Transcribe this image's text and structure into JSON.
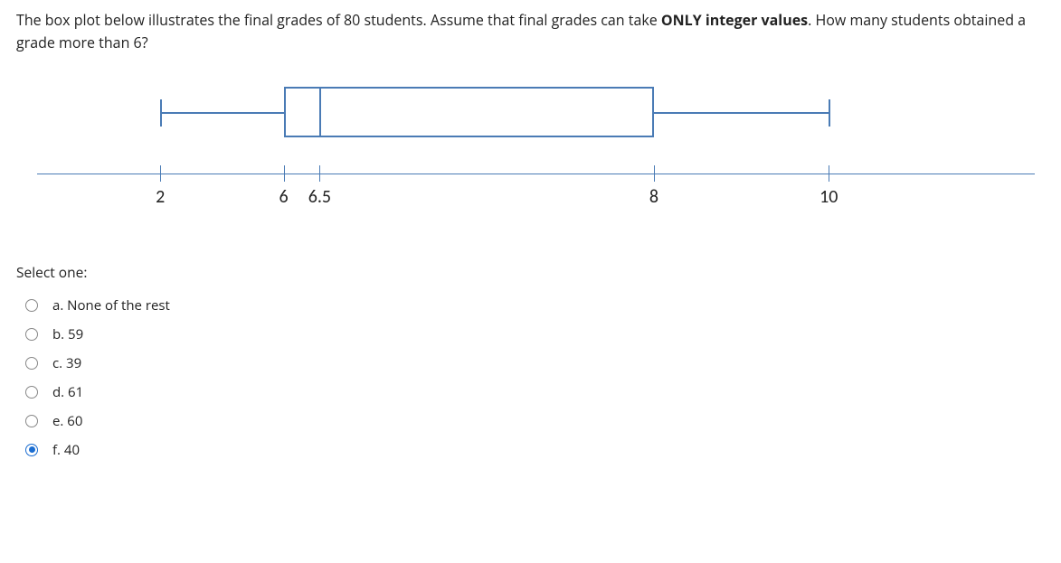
{
  "question": {
    "pre": "The box plot below illustrates the final grades of 80 students. Assume that final grades can take ",
    "bold": "ONLY integer values",
    "post": ". How many students obtained a grade more than 6?"
  },
  "boxplot": {
    "axis_ticks": [
      {
        "value": "2",
        "pos": 14.0
      },
      {
        "value": "6",
        "pos": 26.0
      },
      {
        "value": "6.5",
        "pos": 29.5
      },
      {
        "value": "8",
        "pos": 62.0
      },
      {
        "value": "10",
        "pos": 79.0
      }
    ],
    "min_pos": 14.0,
    "q1_pos": 26.0,
    "median_pos": 29.5,
    "q3_pos": 62.0,
    "max_pos": 79.0,
    "line_color": "#4a7bb5"
  },
  "prompt": "Select one:",
  "options": [
    {
      "key": "a",
      "label": "a. None of the rest",
      "selected": false
    },
    {
      "key": "b",
      "label": "b. 59",
      "selected": false
    },
    {
      "key": "c",
      "label": "c. 39",
      "selected": false
    },
    {
      "key": "d",
      "label": "d. 61",
      "selected": false
    },
    {
      "key": "e",
      "label": "e. 60",
      "selected": false
    },
    {
      "key": "f",
      "label": "f. 40",
      "selected": true
    }
  ]
}
